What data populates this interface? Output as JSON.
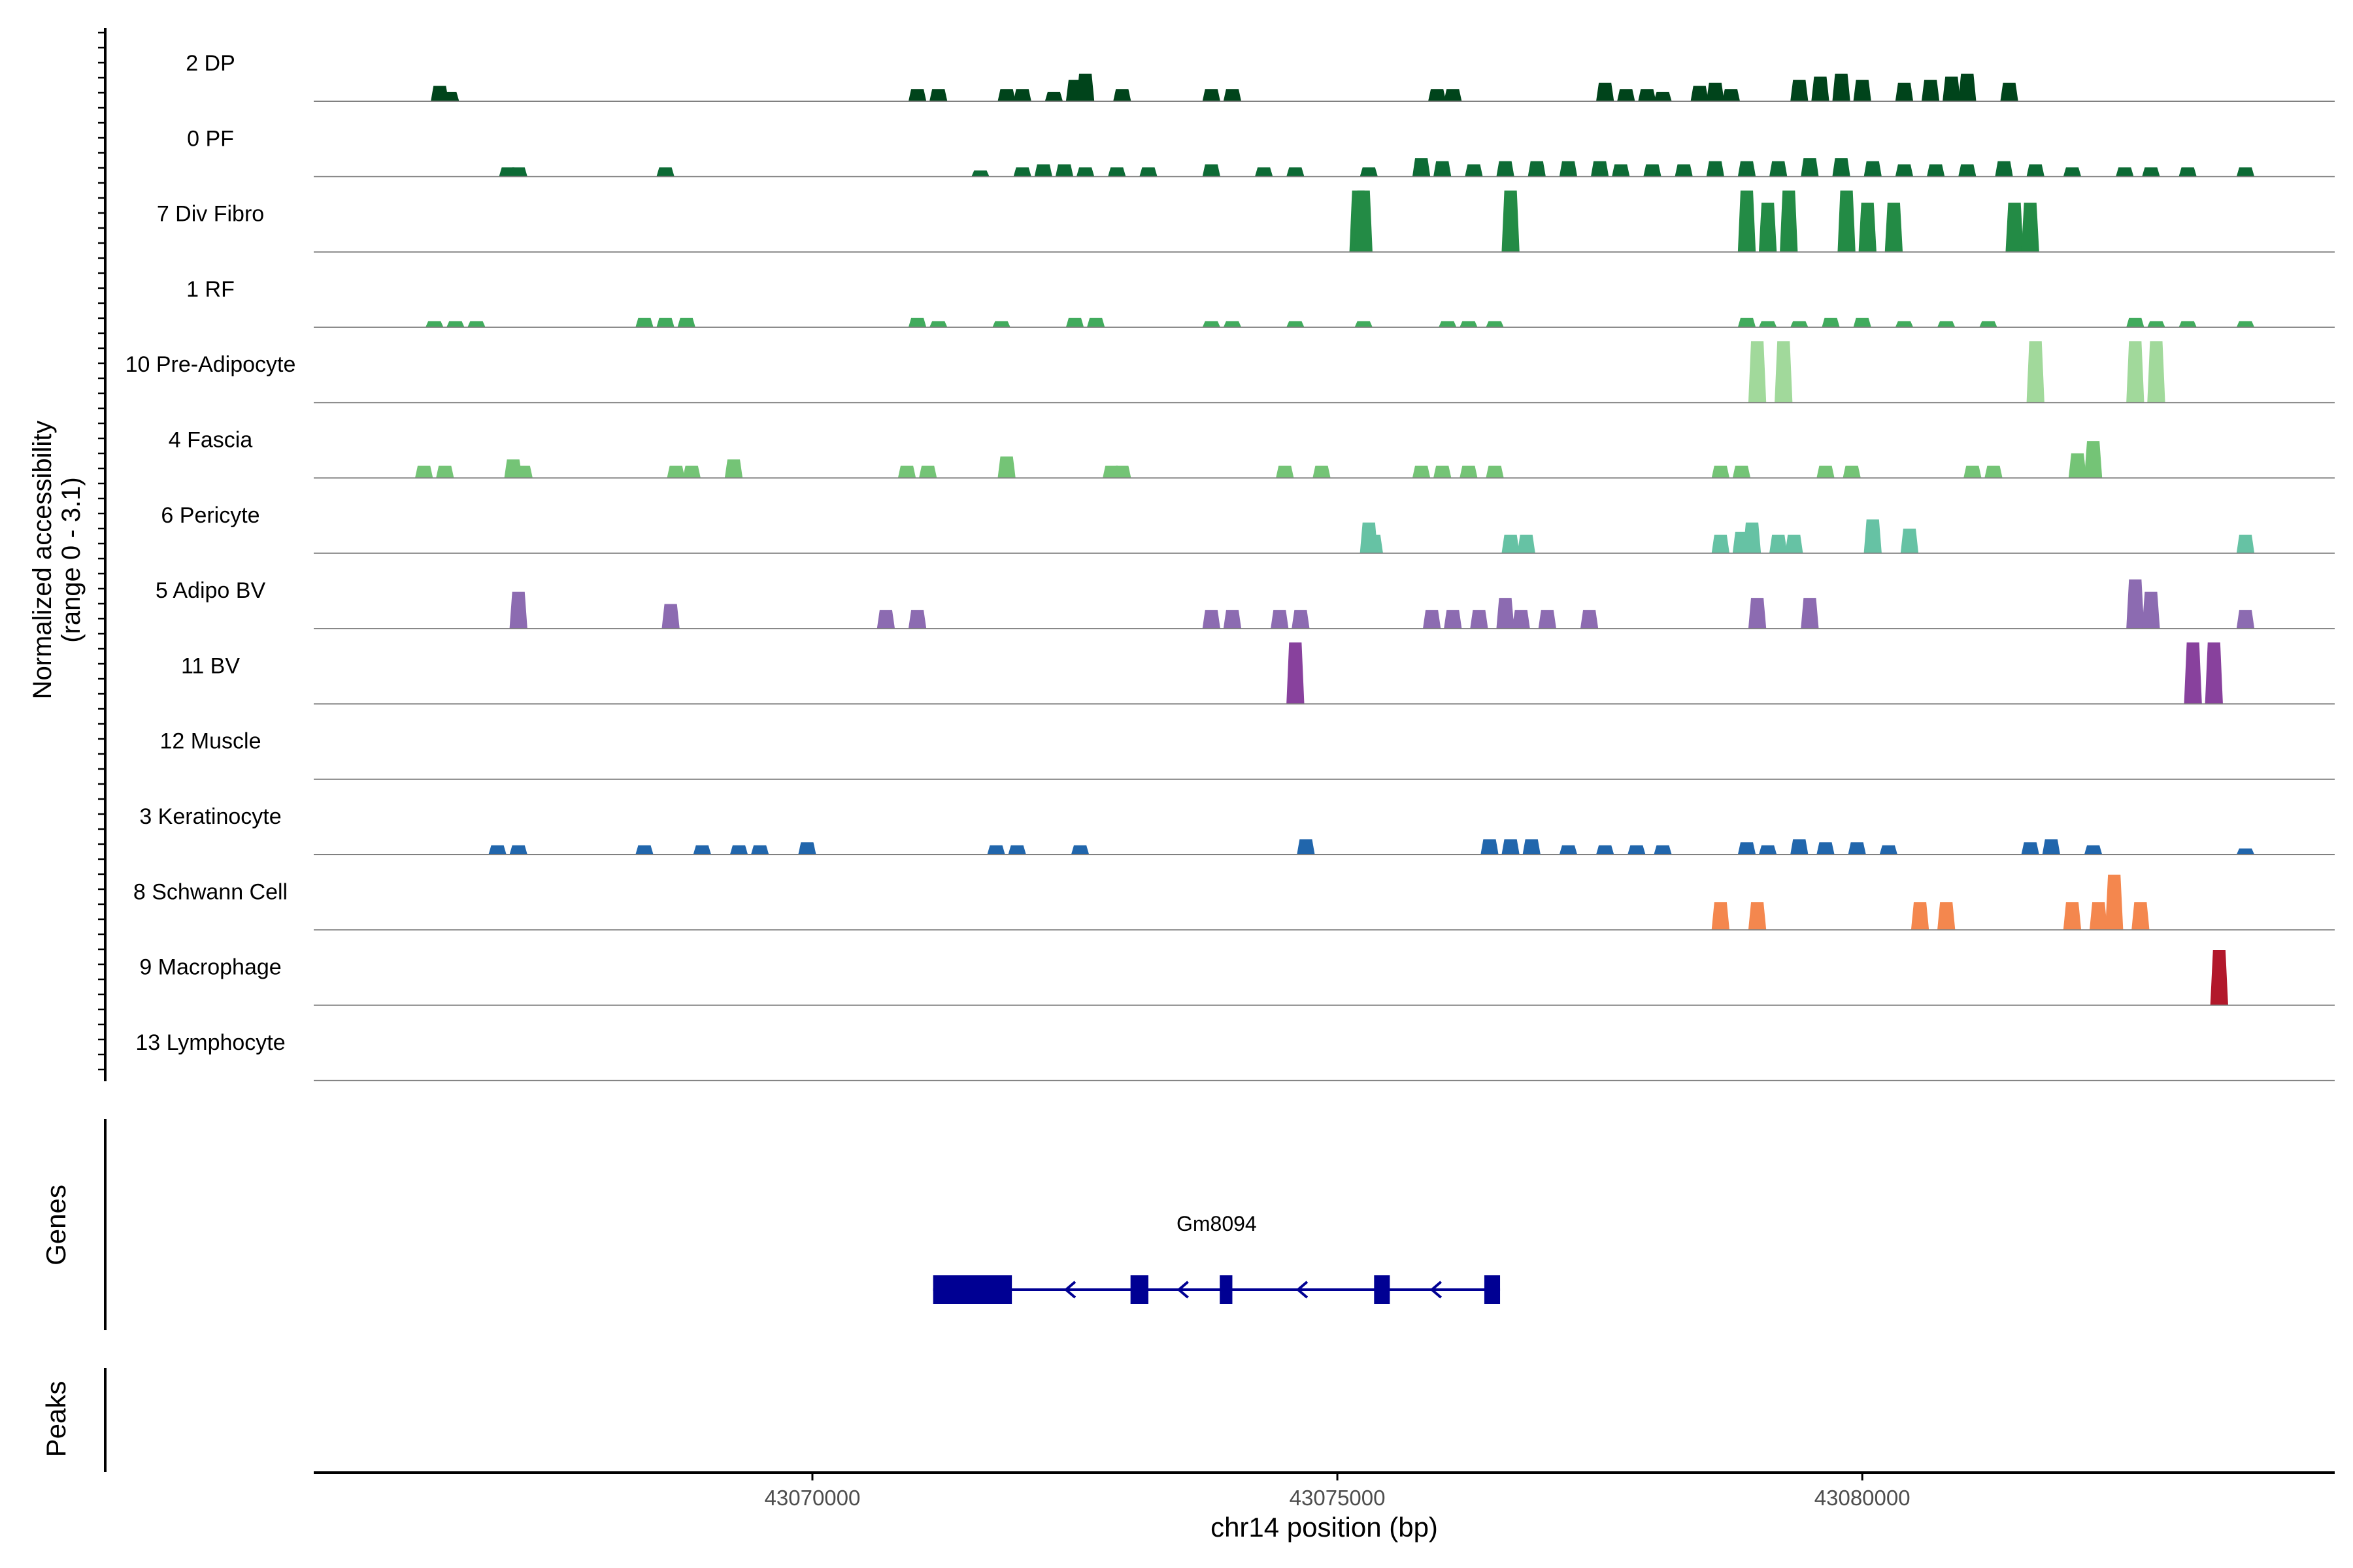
{
  "chart_data": {
    "type": "area",
    "subtype": "genome-coverage-track",
    "ylabel_line1": "Normalized accessibility",
    "ylabel_line2": "(range 0 - 3.1)",
    "xlabel": "chr14 position (bp)",
    "ylim": [
      0,
      3.1
    ],
    "xlim": [
      43065250,
      43084500
    ],
    "x_ticks": [
      43070000,
      43075000,
      43080000
    ],
    "x_tick_labels": [
      "43070000",
      "43075000",
      "43080000"
    ],
    "genes_label": "Genes",
    "peaks_label": "Peaks",
    "gene": {
      "name": "Gm8094",
      "strand": "-",
      "start": 43071150,
      "end": 43076550,
      "color": "#000093",
      "exons": [
        {
          "start": 43071150,
          "end": 43071900
        },
        {
          "start": 43073030,
          "end": 43073200
        },
        {
          "start": 43073880,
          "end": 43074000
        },
        {
          "start": 43075350,
          "end": 43075500
        },
        {
          "start": 43076400,
          "end": 43076550
        }
      ]
    },
    "tracks": [
      {
        "name": "2 DP",
        "color": "#00441b",
        "peaks": [
          [
            43066450,
            0.25
          ],
          [
            43066550,
            0.15
          ],
          [
            43071000,
            0.2
          ],
          [
            43071200,
            0.2
          ],
          [
            43071850,
            0.2
          ],
          [
            43072000,
            0.2
          ],
          [
            43072300,
            0.15
          ],
          [
            43072500,
            0.35
          ],
          [
            43072600,
            0.45
          ],
          [
            43072950,
            0.2
          ],
          [
            43073800,
            0.2
          ],
          [
            43074000,
            0.2
          ],
          [
            43075950,
            0.2
          ],
          [
            43076100,
            0.2
          ],
          [
            43077550,
            0.3
          ],
          [
            43077750,
            0.2
          ],
          [
            43077950,
            0.2
          ],
          [
            43078100,
            0.15
          ],
          [
            43078450,
            0.25
          ],
          [
            43078600,
            0.3
          ],
          [
            43078750,
            0.2
          ],
          [
            43079400,
            0.35
          ],
          [
            43079600,
            0.4
          ],
          [
            43079800,
            0.45
          ],
          [
            43080000,
            0.35
          ],
          [
            43080400,
            0.3
          ],
          [
            43080650,
            0.35
          ],
          [
            43080850,
            0.4
          ],
          [
            43081000,
            0.45
          ],
          [
            43081400,
            0.3
          ]
        ]
      },
      {
        "name": "0 PF",
        "color": "#0d6b35",
        "peaks": [
          [
            43067100,
            0.15
          ],
          [
            43067200,
            0.15
          ],
          [
            43068600,
            0.15
          ],
          [
            43071600,
            0.1
          ],
          [
            43072000,
            0.15
          ],
          [
            43072200,
            0.2
          ],
          [
            43072400,
            0.2
          ],
          [
            43072600,
            0.15
          ],
          [
            43072900,
            0.15
          ],
          [
            43073200,
            0.15
          ],
          [
            43073800,
            0.2
          ],
          [
            43074300,
            0.15
          ],
          [
            43074600,
            0.15
          ],
          [
            43075300,
            0.15
          ],
          [
            43075800,
            0.3
          ],
          [
            43076000,
            0.25
          ],
          [
            43076300,
            0.2
          ],
          [
            43076600,
            0.25
          ],
          [
            43076900,
            0.25
          ],
          [
            43077200,
            0.25
          ],
          [
            43077500,
            0.25
          ],
          [
            43077700,
            0.2
          ],
          [
            43078000,
            0.2
          ],
          [
            43078300,
            0.2
          ],
          [
            43078600,
            0.25
          ],
          [
            43078900,
            0.25
          ],
          [
            43079200,
            0.25
          ],
          [
            43079500,
            0.3
          ],
          [
            43079800,
            0.3
          ],
          [
            43080100,
            0.25
          ],
          [
            43080400,
            0.2
          ],
          [
            43080700,
            0.2
          ],
          [
            43081000,
            0.2
          ],
          [
            43081350,
            0.25
          ],
          [
            43081650,
            0.2
          ],
          [
            43082000,
            0.15
          ],
          [
            43082500,
            0.15
          ],
          [
            43082750,
            0.15
          ],
          [
            43083100,
            0.15
          ],
          [
            43083650,
            0.15
          ]
        ]
      },
      {
        "name": "7 Div Fibro",
        "color": "#238b45",
        "peaks": [
          [
            43075200,
            1.0
          ],
          [
            43075250,
            1.0
          ],
          [
            43076650,
            1.0
          ],
          [
            43078900,
            1.0
          ],
          [
            43079100,
            0.8
          ],
          [
            43079300,
            1.0
          ],
          [
            43079850,
            1.0
          ],
          [
            43080050,
            0.8
          ],
          [
            43080300,
            0.8
          ],
          [
            43081450,
            0.8
          ],
          [
            43081600,
            0.8
          ]
        ]
      },
      {
        "name": "1 RF",
        "color": "#41ab5d",
        "peaks": [
          [
            43066400,
            0.1
          ],
          [
            43066600,
            0.1
          ],
          [
            43066800,
            0.1
          ],
          [
            43068400,
            0.15
          ],
          [
            43068600,
            0.15
          ],
          [
            43068800,
            0.15
          ],
          [
            43071000,
            0.15
          ],
          [
            43071200,
            0.1
          ],
          [
            43071800,
            0.1
          ],
          [
            43072500,
            0.15
          ],
          [
            43072700,
            0.15
          ],
          [
            43073800,
            0.1
          ],
          [
            43074000,
            0.1
          ],
          [
            43074600,
            0.1
          ],
          [
            43075250,
            0.1
          ],
          [
            43076050,
            0.1
          ],
          [
            43076250,
            0.1
          ],
          [
            43076500,
            0.1
          ],
          [
            43078900,
            0.15
          ],
          [
            43079100,
            0.1
          ],
          [
            43079400,
            0.1
          ],
          [
            43079700,
            0.15
          ],
          [
            43080000,
            0.15
          ],
          [
            43080400,
            0.1
          ],
          [
            43080800,
            0.1
          ],
          [
            43081200,
            0.1
          ],
          [
            43082600,
            0.15
          ],
          [
            43082800,
            0.1
          ],
          [
            43083100,
            0.1
          ],
          [
            43083650,
            0.1
          ]
        ]
      },
      {
        "name": "10 Pre-Adipocyte",
        "color": "#a1d99b",
        "peaks": [
          [
            43079000,
            1.0
          ],
          [
            43079250,
            1.0
          ],
          [
            43081650,
            1.0
          ],
          [
            43082600,
            1.0
          ],
          [
            43082800,
            1.0
          ]
        ]
      },
      {
        "name": "4 Fascia",
        "color": "#74c476",
        "peaks": [
          [
            43066300,
            0.2
          ],
          [
            43066500,
            0.2
          ],
          [
            43067150,
            0.3
          ],
          [
            43067250,
            0.2
          ],
          [
            43068700,
            0.2
          ],
          [
            43068850,
            0.2
          ],
          [
            43069250,
            0.3
          ],
          [
            43070900,
            0.2
          ],
          [
            43071100,
            0.2
          ],
          [
            43071850,
            0.35
          ],
          [
            43072850,
            0.2
          ],
          [
            43072950,
            0.2
          ],
          [
            43074500,
            0.2
          ],
          [
            43074850,
            0.2
          ],
          [
            43075800,
            0.2
          ],
          [
            43076000,
            0.2
          ],
          [
            43076250,
            0.2
          ],
          [
            43076500,
            0.2
          ],
          [
            43078650,
            0.2
          ],
          [
            43078850,
            0.2
          ],
          [
            43079650,
            0.2
          ],
          [
            43079900,
            0.2
          ],
          [
            43081050,
            0.2
          ],
          [
            43081250,
            0.2
          ],
          [
            43082050,
            0.4
          ],
          [
            43082200,
            0.6
          ]
        ]
      },
      {
        "name": "6 Pericyte",
        "color": "#66c2a4",
        "peaks": [
          [
            43075300,
            0.5
          ],
          [
            43075350,
            0.3
          ],
          [
            43076650,
            0.3
          ],
          [
            43076800,
            0.3
          ],
          [
            43078650,
            0.3
          ],
          [
            43078850,
            0.35
          ],
          [
            43078950,
            0.5
          ],
          [
            43079200,
            0.3
          ],
          [
            43079350,
            0.3
          ],
          [
            43080100,
            0.55
          ],
          [
            43080450,
            0.4
          ],
          [
            43083650,
            0.3
          ]
        ]
      },
      {
        "name": "5 Adipo BV",
        "color": "#8c6bb1",
        "peaks": [
          [
            43067200,
            0.6
          ],
          [
            43068650,
            0.4
          ],
          [
            43070700,
            0.3
          ],
          [
            43071000,
            0.3
          ],
          [
            43073800,
            0.3
          ],
          [
            43074000,
            0.3
          ],
          [
            43074450,
            0.3
          ],
          [
            43074650,
            0.3
          ],
          [
            43075900,
            0.3
          ],
          [
            43076100,
            0.3
          ],
          [
            43076350,
            0.3
          ],
          [
            43076600,
            0.5
          ],
          [
            43076750,
            0.3
          ],
          [
            43077000,
            0.3
          ],
          [
            43077400,
            0.3
          ],
          [
            43079000,
            0.5
          ],
          [
            43079500,
            0.5
          ],
          [
            43082600,
            0.8
          ],
          [
            43082750,
            0.6
          ],
          [
            43083650,
            0.3
          ]
        ]
      },
      {
        "name": "11 BV",
        "color": "#88419d",
        "peaks": [
          [
            43074600,
            1.0
          ],
          [
            43083150,
            1.0
          ],
          [
            43083350,
            1.0
          ]
        ]
      },
      {
        "name": "12 Muscle",
        "color": "#4292c6",
        "peaks": []
      },
      {
        "name": "3 Keratinocyte",
        "color": "#2166ac",
        "peaks": [
          [
            43067000,
            0.15
          ],
          [
            43067200,
            0.15
          ],
          [
            43068400,
            0.15
          ],
          [
            43068950,
            0.15
          ],
          [
            43069300,
            0.15
          ],
          [
            43069500,
            0.15
          ],
          [
            43069950,
            0.2
          ],
          [
            43071750,
            0.15
          ],
          [
            43071950,
            0.15
          ],
          [
            43072550,
            0.15
          ],
          [
            43074700,
            0.25
          ],
          [
            43076450,
            0.25
          ],
          [
            43076650,
            0.25
          ],
          [
            43076850,
            0.25
          ],
          [
            43077200,
            0.15
          ],
          [
            43077550,
            0.15
          ],
          [
            43077850,
            0.15
          ],
          [
            43078100,
            0.15
          ],
          [
            43078900,
            0.2
          ],
          [
            43079100,
            0.15
          ],
          [
            43079400,
            0.25
          ],
          [
            43079650,
            0.2
          ],
          [
            43079950,
            0.2
          ],
          [
            43080250,
            0.15
          ],
          [
            43081600,
            0.2
          ],
          [
            43081800,
            0.25
          ],
          [
            43082200,
            0.15
          ],
          [
            43083650,
            0.1
          ]
        ]
      },
      {
        "name": "8 Schwann Cell",
        "color": "#f4874e",
        "peaks": [
          [
            43078650,
            0.45
          ],
          [
            43079000,
            0.45
          ],
          [
            43080550,
            0.45
          ],
          [
            43080800,
            0.45
          ],
          [
            43082000,
            0.45
          ],
          [
            43082250,
            0.45
          ],
          [
            43082400,
            0.9
          ],
          [
            43082650,
            0.45
          ]
        ]
      },
      {
        "name": "9 Macrophage",
        "color": "#b2182b",
        "peaks": [
          [
            43083400,
            0.9
          ]
        ]
      },
      {
        "name": "13 Lymphocyte",
        "color": "#cb181d",
        "peaks": []
      }
    ]
  }
}
